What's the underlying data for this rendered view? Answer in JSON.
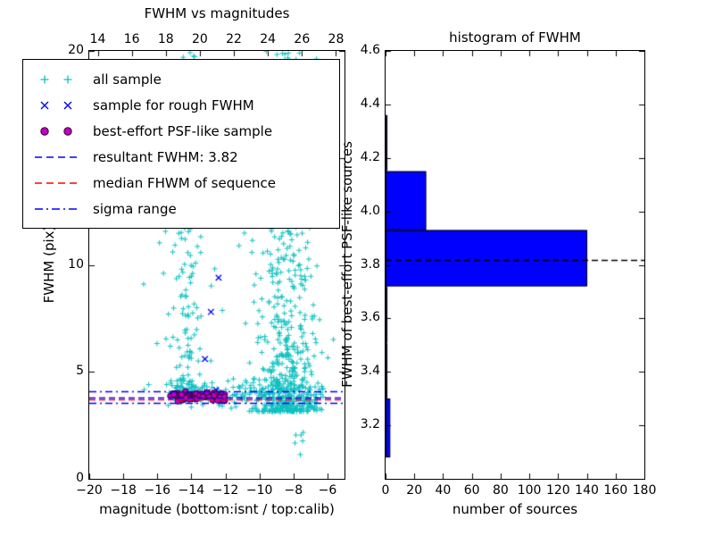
{
  "chart_data": [
    {
      "type": "scatter",
      "title": "FWHM vs magnitudes",
      "xlabel": "magnitude (bottom:isnt / top:calib)",
      "ylabel": "FWHM (pix)",
      "xlim": [
        -20,
        -5
      ],
      "ylim": [
        0,
        20
      ],
      "top_xlim": [
        13.5,
        28.5
      ],
      "xticks": [
        -20,
        -18,
        -16,
        -14,
        -12,
        -10,
        -8,
        -6
      ],
      "xtick_labels": [
        "−20",
        "−18",
        "−16",
        "−14",
        "−12",
        "−10",
        "−8",
        "−6"
      ],
      "yticks": [
        0,
        5,
        10,
        15,
        20
      ],
      "ytick_labels": [
        "0",
        "5",
        "10",
        "15",
        "20"
      ],
      "top_xticks": [
        14,
        16,
        18,
        20,
        22,
        24,
        26,
        28
      ],
      "top_xtick_labels": [
        "14",
        "16",
        "18",
        "20",
        "22",
        "24",
        "26",
        "28"
      ],
      "series": [
        {
          "name": "all sample",
          "marker": "plus",
          "color": "#0fc0c0",
          "clusters": [
            {
              "count": 150,
              "x": {
                "dist": "normal",
                "mean": -14.2,
                "sd": 0.45
              },
              "y": {
                "dist": "pow",
                "min": 4.0,
                "max": 20.3,
                "k": 1.6
              }
            },
            {
              "count": 640,
              "x": {
                "dist": "normal",
                "mean": -8.4,
                "sd": 0.95
              },
              "y": {
                "dist": "pow",
                "min": 3.15,
                "max": 20.0,
                "k": 2.4
              }
            },
            {
              "count": 130,
              "x": {
                "dist": "normal",
                "mean": -7.7,
                "sd": 0.85
              },
              "y": {
                "dist": "uniform",
                "min": 14.0,
                "max": 20.0
              }
            },
            {
              "count": 190,
              "x": {
                "dist": "uniform",
                "min": -15.4,
                "max": -6.2
              },
              "y": {
                "dist": "normal",
                "mean": 4.0,
                "sd": 0.3
              }
            },
            {
              "count": 70,
              "x": {
                "dist": "uniform",
                "min": -16.2,
                "max": -6.0
              },
              "y": {
                "dist": "uniform",
                "min": 3.5,
                "max": 20.0
              }
            },
            {
              "count": 12,
              "x": {
                "dist": "uniform",
                "min": -17.6,
                "max": -15.6
              },
              "y": {
                "dist": "uniform",
                "min": 3.0,
                "max": 20.0
              }
            },
            {
              "count": 6,
              "x": {
                "dist": "normal",
                "mean": -8.0,
                "sd": 0.7
              },
              "y": {
                "dist": "uniform",
                "min": 0.8,
                "max": 3.0
              }
            }
          ]
        },
        {
          "name": "sample for rough FWHM",
          "marker": "x",
          "color": "#0000ff",
          "points": [
            [
              -12.4,
              9.4
            ],
            [
              -12.85,
              7.8
            ],
            [
              -13.2,
              5.6
            ],
            [
              -12.2,
              3.65
            ],
            [
              -14.85,
              3.95
            ],
            [
              -13.9,
              3.8
            ],
            [
              -13.05,
              4.05
            ],
            [
              -12.55,
              4.15
            ],
            [
              -14.3,
              3.7
            ],
            [
              -15.05,
              3.9
            ]
          ]
        },
        {
          "name": "best-effort PSF-like sample",
          "marker": "circle",
          "color": "#bf00bf",
          "edge_color": "#300030",
          "clusters": [
            {
              "count": 90,
              "x": {
                "dist": "uniform",
                "min": -15.3,
                "max": -12.0
              },
              "y": {
                "dist": "normal",
                "mean": 3.85,
                "sd": 0.09
              }
            }
          ]
        }
      ],
      "lines": [
        {
          "name": "resultant FWHM: 3.82",
          "y": 3.82,
          "style": "dashed",
          "color": "#0000ff"
        },
        {
          "name": "median FHWM of sequence",
          "y": 3.72,
          "style": "dashed",
          "color": "#ff0000"
        },
        {
          "name": "sigma range lower",
          "y": 3.55,
          "style": "dashdot",
          "color": "#0000ff"
        },
        {
          "name": "sigma range upper",
          "y": 4.1,
          "style": "dashdot",
          "color": "#0000ff"
        }
      ]
    },
    {
      "type": "bar",
      "orientation": "horizontal",
      "title": "histogram of FWHM",
      "xlabel": "number of sources",
      "ylabel": "FWHM of best-effort PSF-like sources",
      "xlim": [
        0,
        180
      ],
      "ylim": [
        3.0,
        4.6
      ],
      "xticks": [
        0,
        20,
        40,
        60,
        80,
        100,
        120,
        140,
        160,
        180
      ],
      "xtick_labels": [
        "0",
        "20",
        "40",
        "60",
        "80",
        "100",
        "120",
        "140",
        "160",
        "180"
      ],
      "yticks": [
        3.2,
        3.4,
        3.6,
        3.8,
        4.0,
        4.2,
        4.4,
        4.6
      ],
      "ytick_labels": [
        "3.2",
        "3.4",
        "3.6",
        "3.8",
        "4.0",
        "4.2",
        "4.4",
        "4.6"
      ],
      "bin_edges": [
        3.08,
        3.3,
        3.51,
        3.72,
        3.93,
        4.15,
        4.36
      ],
      "counts": [
        3,
        1,
        1,
        140,
        28,
        1
      ],
      "bar_color": "#0000ff",
      "bar_edge_color": "#000000",
      "marker_line": {
        "y": 3.82,
        "style": "dashed",
        "color": "#000000"
      }
    }
  ],
  "legend": {
    "entries": [
      {
        "label": "all sample",
        "handle": "markers",
        "marker": "plus",
        "color": "#0fc0c0"
      },
      {
        "label": "sample for rough FWHM",
        "handle": "markers",
        "marker": "x",
        "color": "#0000ff"
      },
      {
        "label": "best-effort PSF-like sample",
        "handle": "markers",
        "marker": "circle",
        "color": "#bf00bf",
        "edge_color": "#300030"
      },
      {
        "label": "resultant FWHM: 3.82",
        "handle": "line",
        "line_style": "dashed",
        "color": "#0000ff"
      },
      {
        "label": "median FHWM of sequence",
        "handle": "line",
        "line_style": "dashed",
        "color": "#ff0000"
      },
      {
        "label": "sigma range",
        "handle": "line",
        "line_style": "dashdot",
        "color": "#0000ff"
      }
    ]
  }
}
